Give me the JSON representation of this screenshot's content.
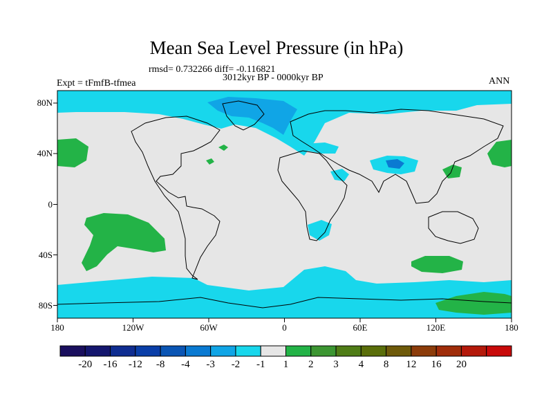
{
  "figure": {
    "title": "Mean Sea Level Pressure (in hPa)",
    "stats": "rmsd= 0.732266 diff= -0.116821",
    "experiment": "Expt = tFmfB-tfmea",
    "period": "3012kyr BP - 0000kyr BP",
    "season": "ANN"
  },
  "axes": {
    "x_ticks": [
      "180",
      "120W",
      "60W",
      "0",
      "60E",
      "120E",
      "180"
    ],
    "y_ticks": [
      "80N",
      "40N",
      "0",
      "40S",
      "80S"
    ]
  },
  "colorbar": {
    "colors": [
      "#1a0f5e",
      "#14166e",
      "#0f2d91",
      "#0a3ea8",
      "#0a55b4",
      "#0a7ad2",
      "#10a5e6",
      "#18d7ec",
      "#e6e6e6",
      "#23b347",
      "#3c9632",
      "#4f7d16",
      "#5a6e0a",
      "#6e5a0a",
      "#8c3c0a",
      "#a02d0a",
      "#b4190a",
      "#c80a0a"
    ],
    "labels": [
      "-20",
      "-16",
      "-12",
      "-8",
      "-4",
      "-3",
      "-2",
      "-1",
      "1",
      "2",
      "3",
      "4",
      "8",
      "12",
      "16",
      "20"
    ]
  },
  "palette": {
    "neutral": "#e6e6e6",
    "negative_light": "#18d7ec",
    "negative_mid": "#10a5e6",
    "negative_dark": "#0a7ad2",
    "positive_light": "#23b347"
  },
  "map_regions": [
    {
      "name": "arctic-negative-anomaly",
      "class": "-1 to -2"
    },
    {
      "name": "north-atlantic-negative-core",
      "class": "-2 to -3"
    },
    {
      "name": "tibet-negative-anomaly",
      "class": "-1 to -3"
    },
    {
      "name": "southern-ocean-negative-anomaly",
      "class": "-1 to -2"
    },
    {
      "name": "north-pacific-positive-anomaly",
      "class": "1 to 2"
    },
    {
      "name": "south-pacific-positive-anomaly",
      "class": "1 to 2"
    },
    {
      "name": "south-indian-positive-anomaly",
      "class": "1 to 2"
    },
    {
      "name": "antarctic-positive-anomaly",
      "class": "1 to 2"
    }
  ]
}
